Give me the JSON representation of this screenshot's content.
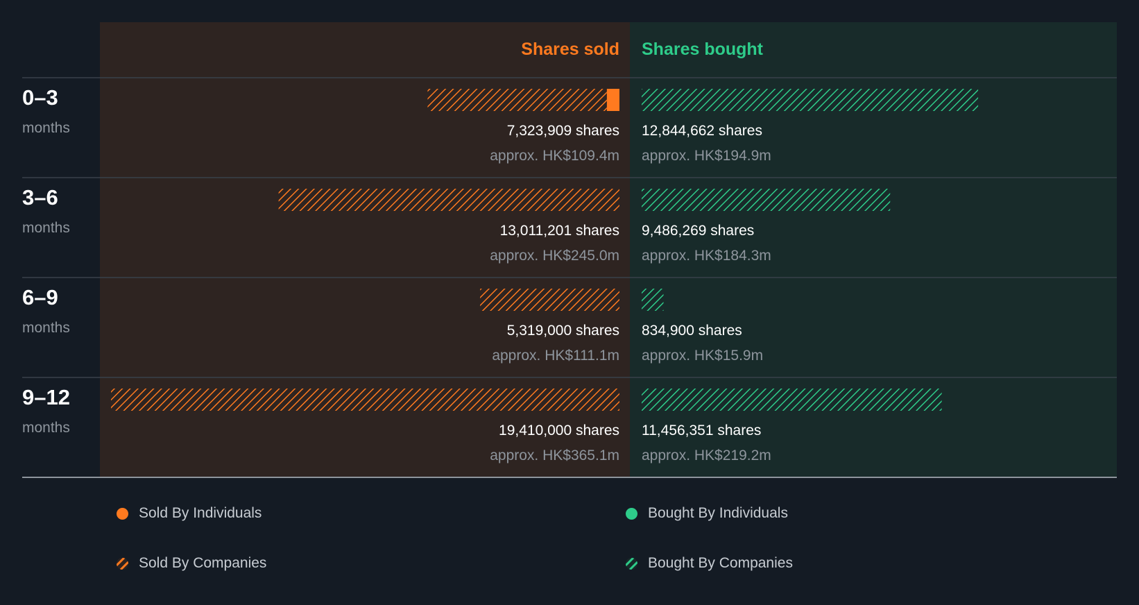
{
  "chart_data": {
    "type": "bar",
    "subtype": "diverging-horizontal-bar",
    "left_header": "Shares sold",
    "right_header": "Shares bought",
    "unit_label": "months",
    "periods": [
      {
        "label": "0–3",
        "sold_shares": 7323909,
        "sold_individuals_shares": 480000,
        "sold_label": "7,323,909 shares",
        "sold_value": "approx. HK$109.4m",
        "bought_shares": 12844662,
        "bought_individuals_shares": 0,
        "bought_label": "12,844,662 shares",
        "bought_value": "approx. HK$194.9m"
      },
      {
        "label": "3–6",
        "sold_shares": 13011201,
        "sold_individuals_shares": 0,
        "sold_label": "13,011,201 shares",
        "sold_value": "approx. HK$245.0m",
        "bought_shares": 9486269,
        "bought_individuals_shares": 0,
        "bought_label": "9,486,269 shares",
        "bought_value": "approx. HK$184.3m"
      },
      {
        "label": "6–9",
        "sold_shares": 5319000,
        "sold_individuals_shares": 0,
        "sold_label": "5,319,000 shares",
        "sold_value": "approx. HK$111.1m",
        "bought_shares": 834900,
        "bought_individuals_shares": 0,
        "bought_label": "834,900 shares",
        "bought_value": "approx. HK$15.9m"
      },
      {
        "label": "9–12",
        "sold_shares": 19410000,
        "sold_individuals_shares": 0,
        "sold_label": "19,410,000 shares",
        "sold_value": "approx. HK$365.1m",
        "bought_shares": 11456351,
        "bought_individuals_shares": 0,
        "bought_label": "11,456,351 shares",
        "bought_value": "approx. HK$219.2m"
      }
    ],
    "xlim": [
      0,
      19410000
    ],
    "legend": [
      {
        "label": "Sold By Individuals",
        "kind": "solid-circle",
        "side": "sold"
      },
      {
        "label": "Bought By Individuals",
        "kind": "solid-circle",
        "side": "bought"
      },
      {
        "label": "Sold By Companies",
        "kind": "hatched-circle",
        "side": "sold"
      },
      {
        "label": "Bought By Companies",
        "kind": "hatched-circle",
        "side": "bought"
      }
    ],
    "legend_placement": "bottom",
    "grid": false
  },
  "colors": {
    "background": "#141b24",
    "sold_panel": "#2e2421",
    "bought_panel": "#182b2a",
    "sold": "#ff7a1f",
    "bought": "#2ecc8a",
    "text_primary": "#ffffff",
    "text_secondary": "#8e959d",
    "divider": "#39414b",
    "bottom_rule": "#8e959d"
  }
}
